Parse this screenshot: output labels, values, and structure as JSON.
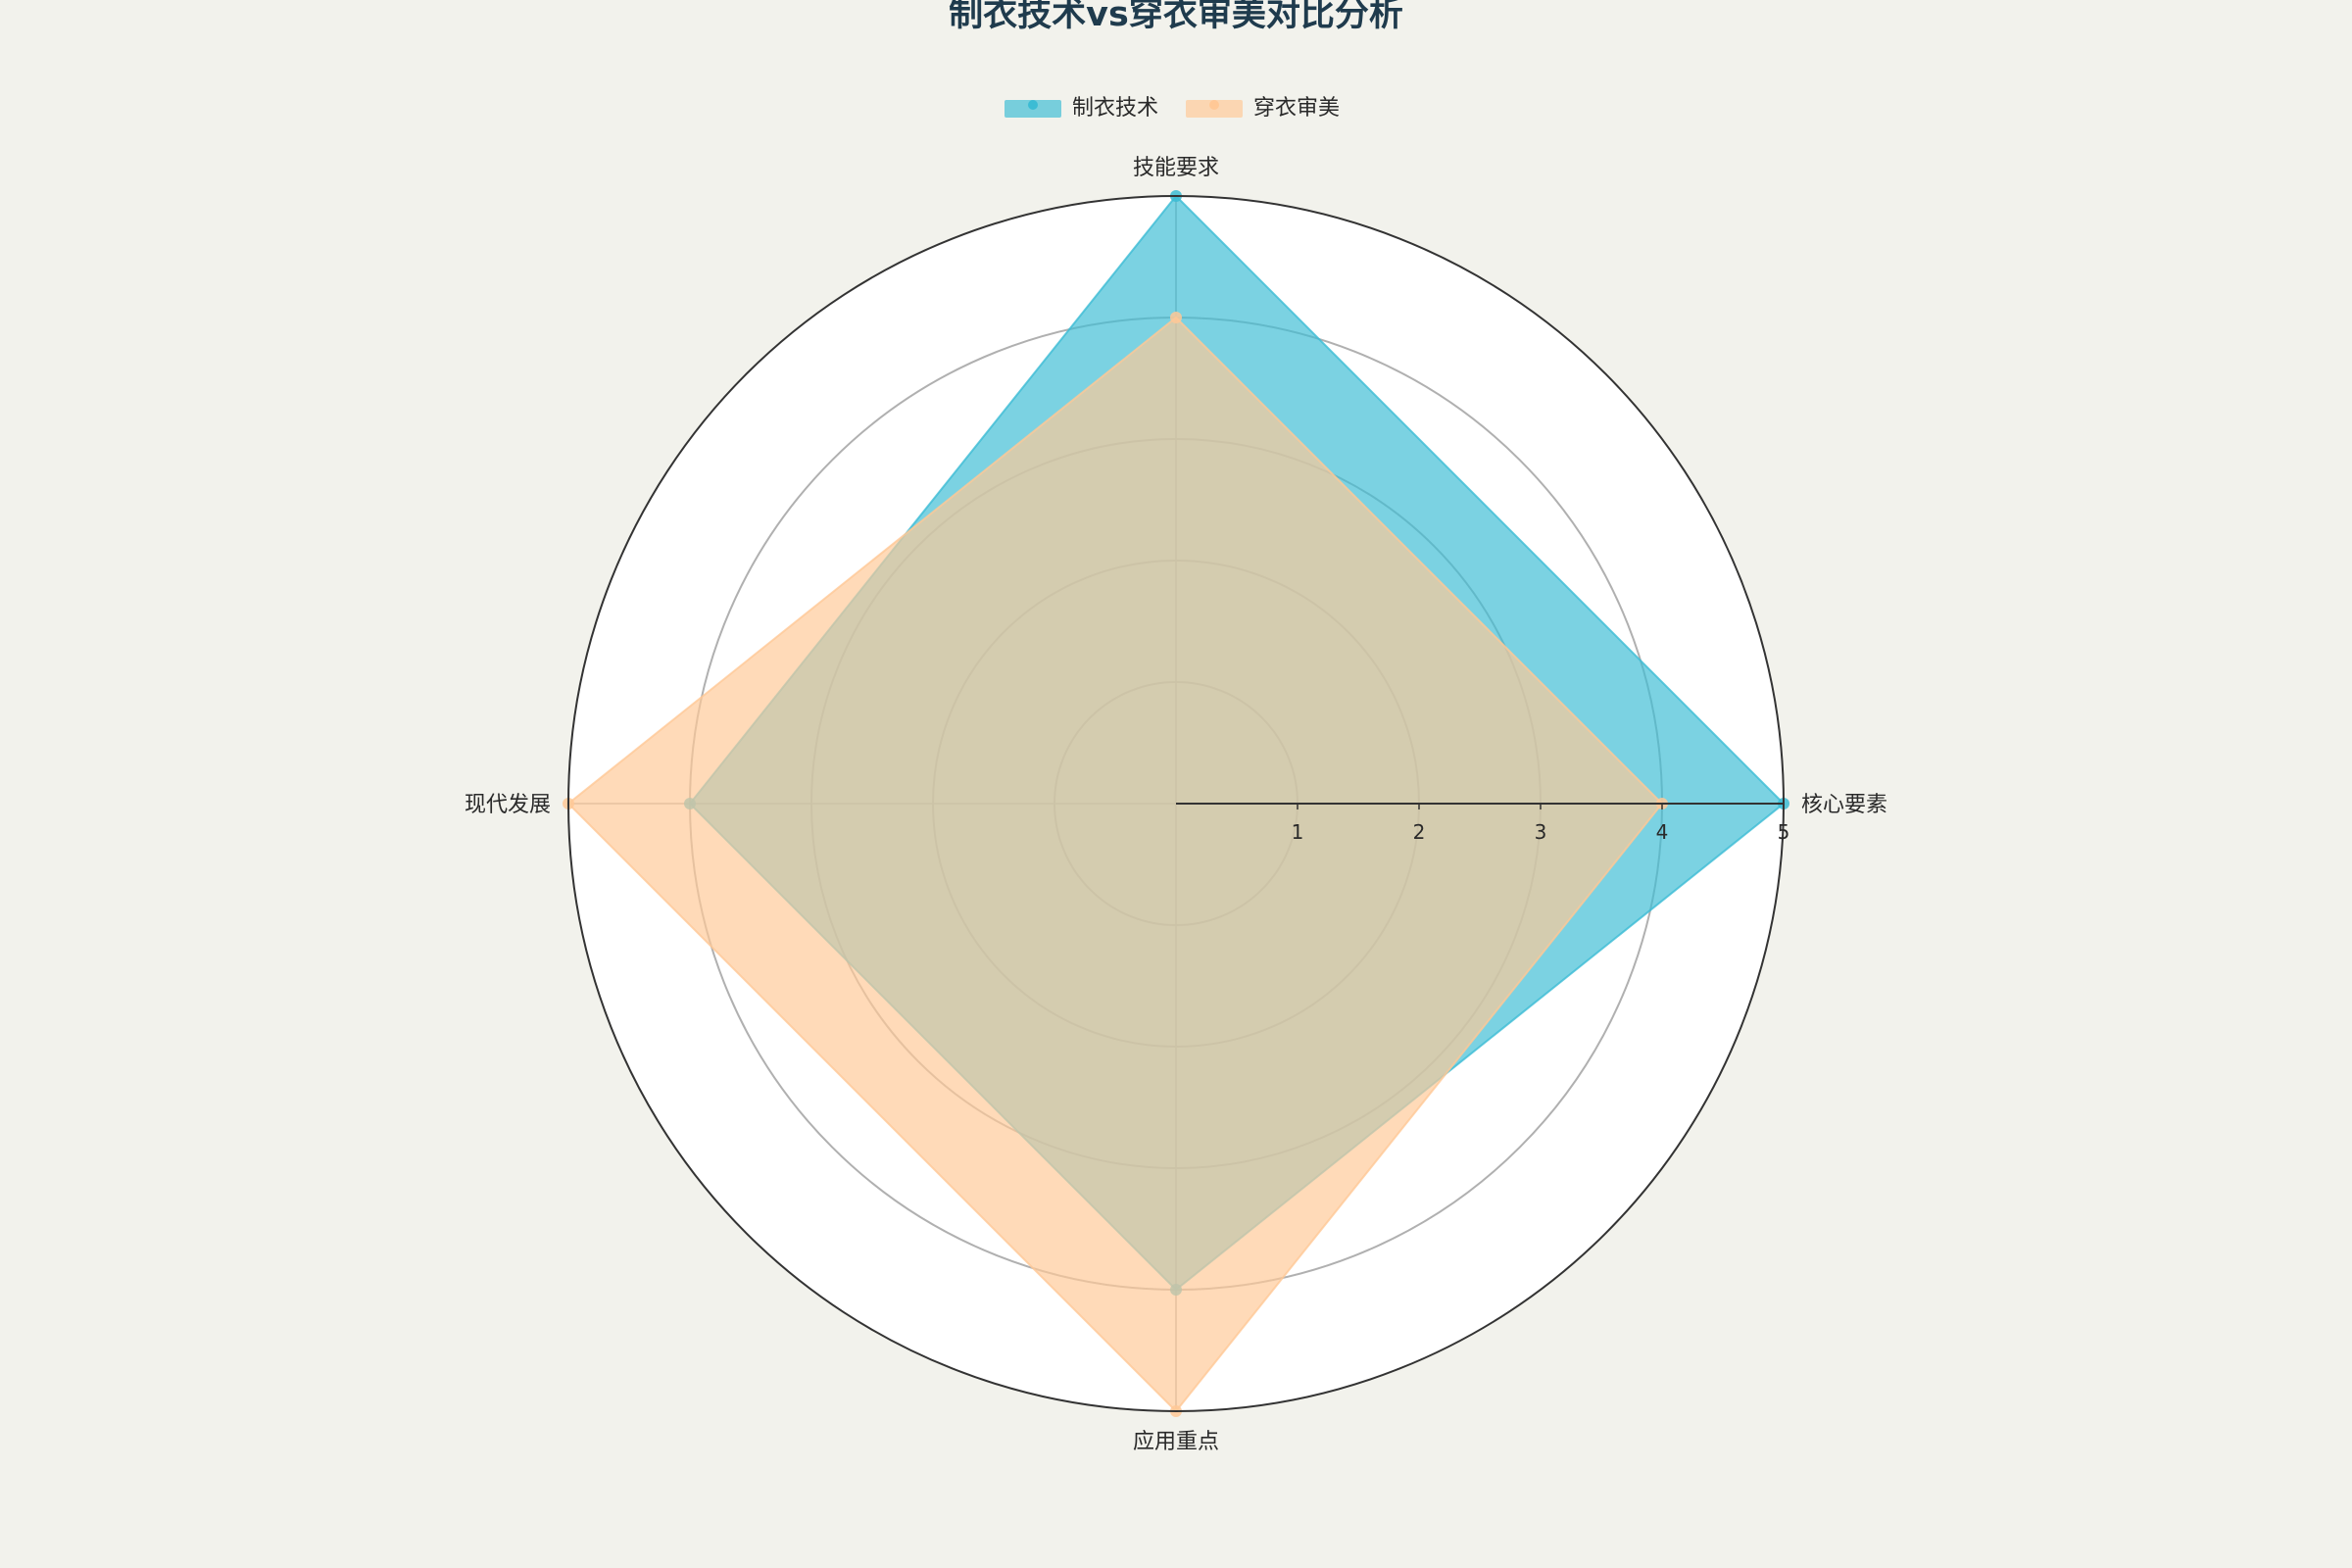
{
  "colors": {
    "background": "#f2f2ec",
    "plot_background": "#ffffff",
    "grid": "#b0b0b0",
    "outer_ring": "#333333"
  },
  "chart_data": {
    "type": "radar",
    "title": "制衣技术vs穿衣审美对比分析",
    "axes": [
      "核心要素",
      "技能要求",
      "现代发展",
      "应用重点"
    ],
    "rlim": [
      0,
      5
    ],
    "rticks": [
      "1",
      "2",
      "3",
      "4",
      "5"
    ],
    "legend_position": "top-center",
    "series": [
      {
        "name": "制衣技术",
        "values": [
          5,
          5,
          4,
          4
        ],
        "color": "#3cbcd4"
      },
      {
        "name": "穿衣审美",
        "values": [
          4,
          4,
          5,
          5
        ],
        "color": "#ffc896"
      }
    ]
  }
}
